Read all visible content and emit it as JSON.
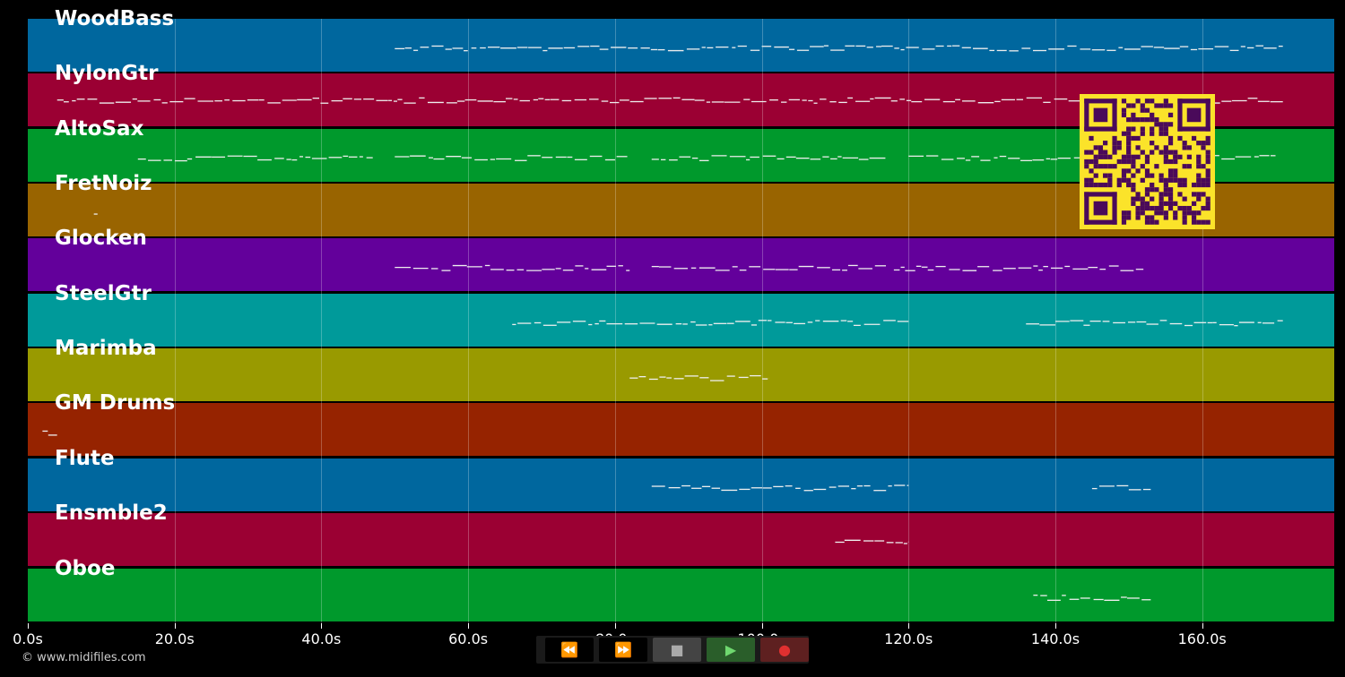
{
  "tracks": [
    {
      "name": "WoodBass",
      "color": "#00679e"
    },
    {
      "name": "NylonGtr",
      "color": "#9b0033"
    },
    {
      "name": "AltoSax",
      "color": "#00992c"
    },
    {
      "name": "FretNoiz",
      "color": "#996400"
    },
    {
      "name": "Glocken",
      "color": "#63009b"
    },
    {
      "name": "SteelGtr",
      "color": "#009a9a"
    },
    {
      "name": "Marimba",
      "color": "#999a00"
    },
    {
      "name": "GM Drums",
      "color": "#962300"
    },
    {
      "name": "Flute",
      "color": "#00679e"
    },
    {
      "name": "Ensmble2",
      "color": "#9b0033"
    },
    {
      "name": "Oboe",
      "color": "#00992c"
    }
  ],
  "axis": {
    "ticks": [
      "0.0s",
      "20.0s",
      "40.0s",
      "60.0s",
      "80.0s",
      "100.0s",
      "120.0s",
      "140.0s",
      "160.0s"
    ],
    "max_seconds": 178
  },
  "note_regions": [
    {
      "track": 0,
      "segments": [
        [
          50,
          171
        ]
      ]
    },
    {
      "track": 1,
      "segments": [
        [
          4,
          171
        ]
      ]
    },
    {
      "track": 2,
      "segments": [
        [
          15,
          47
        ],
        [
          50,
          82
        ],
        [
          85,
          117
        ],
        [
          120,
          170
        ]
      ]
    },
    {
      "track": 3,
      "segments": [
        [
          9,
          9.5
        ]
      ]
    },
    {
      "track": 4,
      "segments": [
        [
          50,
          82
        ],
        [
          85,
          117
        ],
        [
          118,
          152
        ]
      ]
    },
    {
      "track": 5,
      "segments": [
        [
          66,
          120
        ],
        [
          136,
          171
        ]
      ]
    },
    {
      "track": 6,
      "segments": [
        [
          82,
          101
        ]
      ]
    },
    {
      "track": 7,
      "segments": [
        [
          2,
          4
        ]
      ]
    },
    {
      "track": 8,
      "segments": [
        [
          85,
          120
        ],
        [
          145,
          153
        ]
      ]
    },
    {
      "track": 9,
      "segments": [
        [
          110,
          120
        ]
      ]
    },
    {
      "track": 10,
      "segments": [
        [
          137,
          153
        ]
      ]
    }
  ],
  "footer": {
    "copyright": "© www.midifiles.com"
  },
  "controls": [
    {
      "name": "rewind-button",
      "glyph": "⏪",
      "color": "#000"
    },
    {
      "name": "fast-forward-button",
      "glyph": "⏩",
      "color": "#000"
    },
    {
      "name": "stop-button",
      "glyph": "■",
      "color": "#444"
    },
    {
      "name": "play-button",
      "glyph": "▶",
      "color": "#2a5e2a"
    },
    {
      "name": "record-button",
      "glyph": "●",
      "color": "#5e2020"
    }
  ],
  "qr_color": "#4a0a5a"
}
